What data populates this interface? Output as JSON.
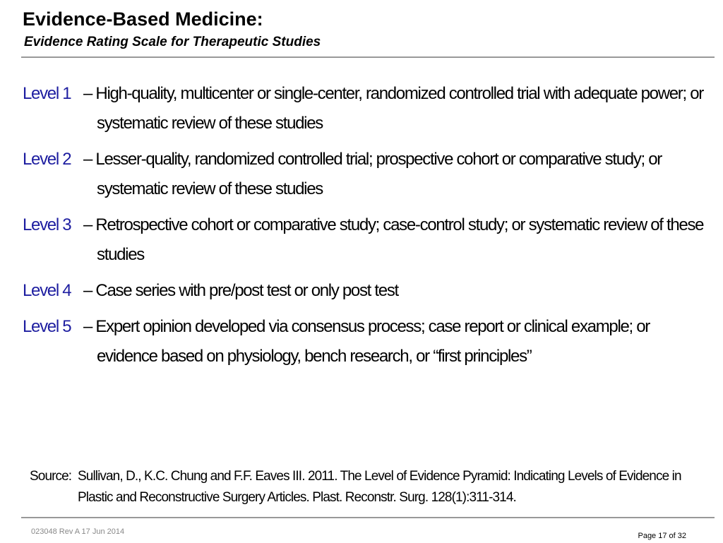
{
  "header": {
    "title": "Evidence-Based Medicine:",
    "subtitle": "Evidence Rating Scale for Therapeutic Studies"
  },
  "levels": [
    {
      "label": "Level 1",
      "text": "– High-quality, multicenter or single-center, randomized controlled trial with adequate power; or systematic review of these studies"
    },
    {
      "label": "Level 2",
      "text": "– Lesser-quality, randomized controlled trial; prospective cohort or comparative study; or systematic review of these studies"
    },
    {
      "label": "Level 3",
      "text": "– Retrospective cohort or comparative study; case-control study; or systematic review of these studies"
    },
    {
      "label": "Level 4",
      "text": "– Case series with pre/post test or only post test"
    },
    {
      "label": "Level 5",
      "text": "– Expert opinion developed via consensus process; case report or clinical example; or evidence based on physiology, bench research, or “first principles”"
    }
  ],
  "source": {
    "label": "Source:",
    "text": "Sullivan, D., K.C. Chung and F.F. Eaves III. 2011. The Level of Evidence Pyramid: Indicating Levels of Evidence in Plastic and Reconstructive Surgery Articles. Plast. Reconstr. Surg. 128(1):311-314."
  },
  "footer": {
    "doc_id": "023048 Rev A 17 Jun 2014",
    "page": "Page 17 of 32"
  }
}
